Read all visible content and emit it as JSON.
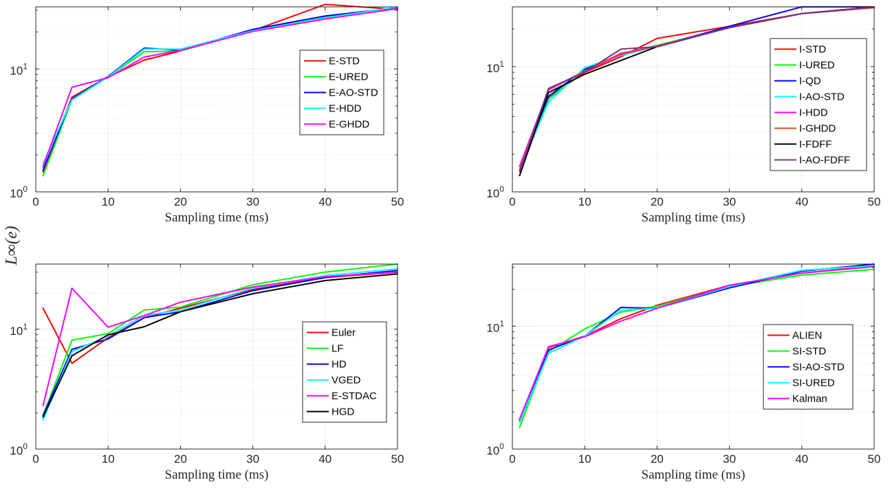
{
  "figure": {
    "ylabel": "L∞(e)",
    "colors": {
      "red": "#ff0000",
      "green": "#00ff00",
      "blue": "#0000ff",
      "cyan": "#00ffff",
      "magenta": "#ff00ff",
      "orange": "#d95319",
      "black": "#000000",
      "purple": "#7e2f8e"
    }
  },
  "chart_data": [
    {
      "type": "line",
      "xlabel": "Sampling time (ms)",
      "ylabel": "",
      "yscale": "log",
      "xlim": [
        0,
        50
      ],
      "ylim": [
        1,
        32
      ],
      "xticks": [
        "0",
        "10",
        "20",
        "30",
        "40",
        "50"
      ],
      "yticks": [
        "10^0",
        "10^1"
      ],
      "grid": true,
      "legend": "right",
      "x": [
        1,
        5,
        10,
        15,
        20,
        30,
        40,
        50
      ],
      "series": [
        {
          "name": "E-STD",
          "color": "#ff0000",
          "values": [
            1.45,
            5.9,
            8.6,
            11.8,
            14.0,
            20.5,
            33.5,
            30.5
          ]
        },
        {
          "name": "E-URED",
          "color": "#00ff00",
          "values": [
            1.35,
            5.6,
            8.6,
            13.8,
            14.0,
            20.5,
            26.5,
            31.0
          ]
        },
        {
          "name": "E-AO-STD",
          "color": "#0000ff",
          "values": [
            1.5,
            5.7,
            8.7,
            14.8,
            14.2,
            21.0,
            27.0,
            31.5
          ]
        },
        {
          "name": "E-HDD",
          "color": "#00ffff",
          "values": [
            1.7,
            5.6,
            8.6,
            14.5,
            14.5,
            20.5,
            26.0,
            32.0
          ]
        },
        {
          "name": "E-GHDD",
          "color": "#ff00ff",
          "values": [
            1.6,
            7.1,
            8.5,
            12.5,
            14.2,
            20.2,
            25.5,
            31.0
          ]
        }
      ]
    },
    {
      "type": "line",
      "xlabel": "Sampling time (ms)",
      "ylabel": "",
      "yscale": "log",
      "xlim": [
        0,
        50
      ],
      "ylim": [
        1,
        30
      ],
      "xticks": [
        "0",
        "10",
        "20",
        "30",
        "40",
        "50"
      ],
      "yticks": [
        "10^0",
        "10^1"
      ],
      "grid": true,
      "legend": "right",
      "x": [
        1,
        5,
        10,
        15,
        20,
        30,
        40,
        50
      ],
      "series": [
        {
          "name": "I-STD",
          "color": "#ff0000",
          "values": [
            1.6,
            5.7,
            9.0,
            12.0,
            16.8,
            21.0,
            26.5,
            29.5
          ]
        },
        {
          "name": "I-URED",
          "color": "#00ff00",
          "values": [
            1.6,
            5.5,
            9.5,
            12.5,
            14.8,
            20.5,
            26.5,
            30.0
          ]
        },
        {
          "name": "I-QD",
          "color": "#0000ff",
          "values": [
            1.5,
            5.8,
            9.5,
            12.5,
            14.5,
            21.0,
            30.0,
            30.0
          ]
        },
        {
          "name": "I-AO-STD",
          "color": "#00ffff",
          "values": [
            1.5,
            5.2,
            9.8,
            12.3,
            14.5,
            20.5,
            26.5,
            30.0
          ]
        },
        {
          "name": "I-HDD",
          "color": "#ff00ff",
          "values": [
            1.6,
            6.5,
            9.2,
            12.5,
            14.6,
            20.5,
            26.5,
            30.0
          ]
        },
        {
          "name": "I-GHDD",
          "color": "#d95319",
          "values": [
            1.5,
            6.6,
            9.2,
            12.8,
            14.6,
            20.5,
            26.5,
            29.5
          ]
        },
        {
          "name": "I-FDFF",
          "color": "#000000",
          "values": [
            1.35,
            6.2,
            8.7,
            11.2,
            14.4,
            20.5,
            26.5,
            30.0
          ]
        },
        {
          "name": "I-AO-FDFF",
          "color": "#7e2f8e",
          "values": [
            1.45,
            6.7,
            9.0,
            13.8,
            14.4,
            20.5,
            26.5,
            30.0
          ]
        }
      ]
    },
    {
      "type": "line",
      "xlabel": "Sampling time (ms)",
      "ylabel": "",
      "yscale": "log",
      "xlim": [
        0,
        50
      ],
      "ylim": [
        1,
        35
      ],
      "xticks": [
        "0",
        "10",
        "20",
        "30",
        "40",
        "50"
      ],
      "yticks": [
        "10^0",
        "10^1"
      ],
      "grid": true,
      "legend": "right",
      "x": [
        1,
        5,
        10,
        15,
        20,
        30,
        40,
        50
      ],
      "series": [
        {
          "name": "Euler",
          "color": "#ff0000",
          "values": [
            15.0,
            5.2,
            8.5,
            12.5,
            15.0,
            21.5,
            27.0,
            30.0
          ]
        },
        {
          "name": "LF",
          "color": "#00ff00",
          "values": [
            1.9,
            8.1,
            9.2,
            14.5,
            15.3,
            23.5,
            30.0,
            35.0
          ]
        },
        {
          "name": "HD",
          "color": "#0000ff",
          "values": [
            1.9,
            6.8,
            8.3,
            12.5,
            14.0,
            21.0,
            27.0,
            31.0
          ]
        },
        {
          "name": "VGED",
          "color": "#00ffff",
          "values": [
            1.75,
            6.5,
            8.8,
            13.0,
            14.5,
            22.0,
            28.0,
            32.0
          ]
        },
        {
          "name": "E-STDAC",
          "color": "#ff00ff",
          "values": [
            2.3,
            22.0,
            10.4,
            13.0,
            16.8,
            22.5,
            27.5,
            30.0
          ]
        },
        {
          "name": "HGD",
          "color": "#000000",
          "values": [
            1.85,
            6.0,
            9.0,
            10.5,
            14.0,
            19.8,
            25.5,
            29.0
          ]
        }
      ]
    },
    {
      "type": "line",
      "xlabel": "Sampling time (ms)",
      "ylabel": "",
      "yscale": "log",
      "xlim": [
        0,
        50
      ],
      "ylim": [
        1,
        32
      ],
      "xticks": [
        "0",
        "10",
        "20",
        "30",
        "40",
        "50"
      ],
      "yticks": [
        "10^0",
        "10^1"
      ],
      "grid": true,
      "legend": "right",
      "x": [
        1,
        5,
        10,
        15,
        20,
        30,
        40,
        50
      ],
      "series": [
        {
          "name": "ALIEN",
          "color": "#ff0000",
          "values": [
            1.65,
            6.7,
            8.3,
            11.5,
            14.8,
            21.5,
            27.0,
            31.0
          ]
        },
        {
          "name": "SI-STD",
          "color": "#00ff00",
          "values": [
            1.5,
            6.2,
            9.5,
            13.0,
            14.5,
            21.0,
            26.0,
            29.0
          ]
        },
        {
          "name": "SI-AO-STD",
          "color": "#0000ff",
          "values": [
            1.7,
            6.4,
            8.3,
            14.2,
            14.0,
            20.5,
            28.0,
            32.0
          ]
        },
        {
          "name": "SI-URED",
          "color": "#00ffff",
          "values": [
            1.65,
            6.0,
            8.3,
            13.5,
            14.0,
            21.0,
            28.5,
            31.0
          ]
        },
        {
          "name": "Kalman",
          "color": "#ff00ff",
          "values": [
            1.75,
            6.8,
            8.2,
            11.0,
            14.0,
            21.5,
            27.0,
            30.5
          ]
        }
      ]
    }
  ]
}
